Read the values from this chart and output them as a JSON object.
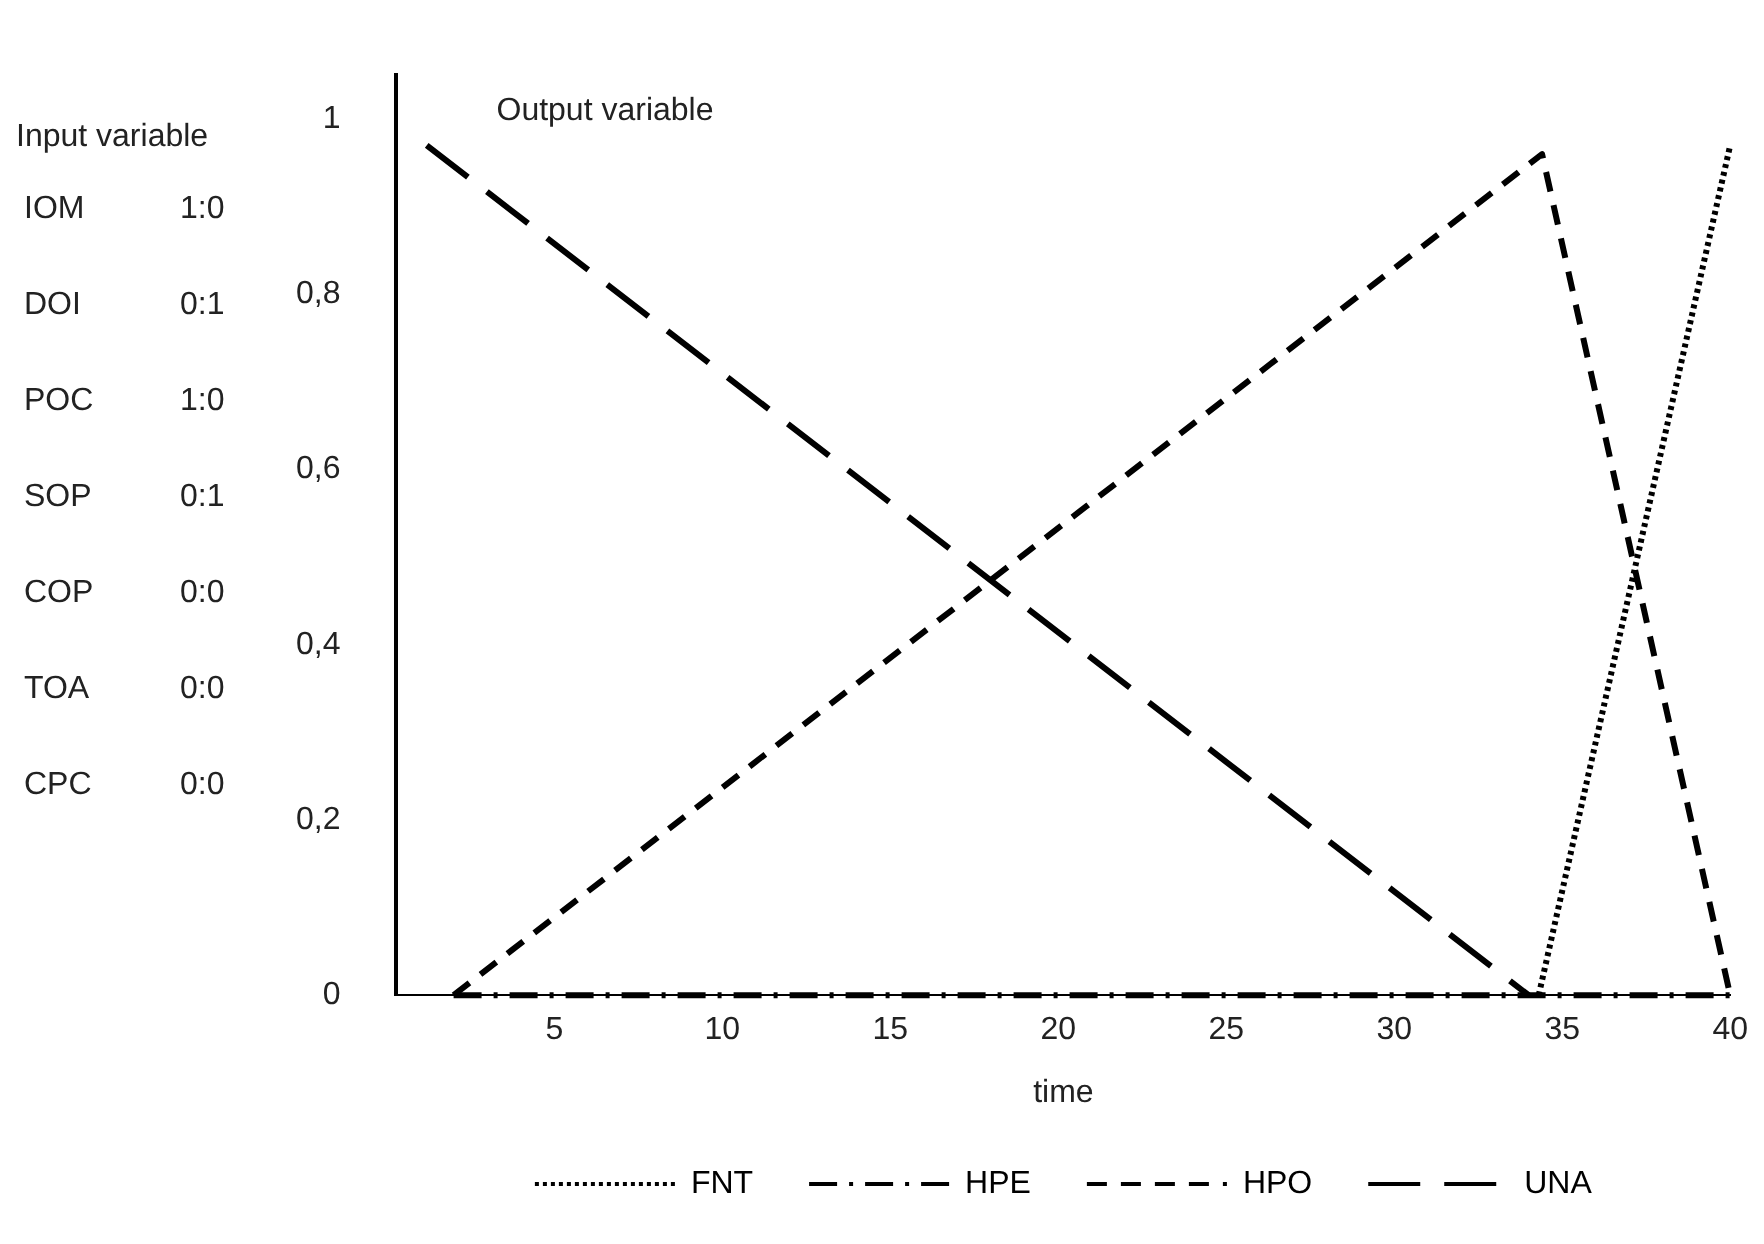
{
  "chart_data": {
    "type": "line",
    "xlabel": "time",
    "annotations": [
      "Output variable",
      "Input variable",
      "IOM",
      "1:0",
      "DOI",
      "0:1",
      "POC",
      "1:0",
      "SOP",
      "0:1",
      "COP",
      "0:0",
      "TOA",
      "0:0",
      "CPC",
      "0:0"
    ],
    "xlim": [
      0.3,
      40
    ],
    "xticks": [
      5,
      10,
      15,
      20,
      25,
      30,
      35,
      40
    ],
    "ylim": [
      0,
      1.05
    ],
    "yticks": [
      0,
      {
        "value": 0.2,
        "label": "0,2"
      },
      {
        "value": 0.4,
        "label": "0,4"
      },
      {
        "value": 0.6,
        "label": "0,6"
      },
      {
        "value": 0.8,
        "label": "0,8"
      },
      1
    ],
    "grid": false,
    "legend": "bottom",
    "marker": "none",
    "series": [
      {
        "name": "FNT",
        "color": "#000000",
        "line_style": "dotted",
        "x": [
          34.3,
          40
        ],
        "values": [
          0,
          0.97
        ]
      },
      {
        "name": "HPE",
        "color": "#000000",
        "line_style": "dashdot",
        "x": [
          2,
          40
        ],
        "values": [
          0,
          0
        ]
      },
      {
        "name": "HPO",
        "color": "#000000",
        "line_style": "dashed",
        "x": [
          2,
          34.4,
          40
        ],
        "values": [
          0,
          0.96,
          0
        ]
      },
      {
        "name": "UNA",
        "color": "#000000",
        "line_style": "longdash",
        "x": [
          1.2,
          34
        ],
        "values": [
          0.97,
          0
        ]
      }
    ]
  }
}
